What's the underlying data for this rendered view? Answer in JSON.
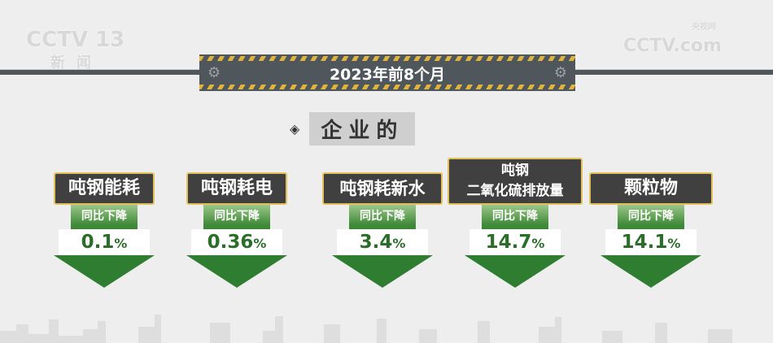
{
  "watermark_left": {
    "logo": "CCTV 13",
    "channel": "新闻"
  },
  "watermark_right": {
    "logo": "CCTV.com",
    "site": "央视网"
  },
  "banner": {
    "title": "2023年前8个月"
  },
  "subtitle": "企业的",
  "yoy_label": "同比下降",
  "accent_colors": {
    "green": "#2f7d30",
    "stripe": "#e0b43a",
    "label_bg": "#404040"
  },
  "items": [
    {
      "label": "吨钢能耗",
      "value": "0.1",
      "unit": "%"
    },
    {
      "label": "吨钢耗电",
      "value": "0.36",
      "unit": "%"
    },
    {
      "label": "吨钢耗新水",
      "value": "3.4",
      "unit": "%"
    },
    {
      "label_line1": "吨钢",
      "label_line2": "二氧化硫排放量",
      "value": "14.7",
      "unit": "%"
    },
    {
      "label": "颗粒物",
      "value": "14.1",
      "unit": "%"
    }
  ]
}
